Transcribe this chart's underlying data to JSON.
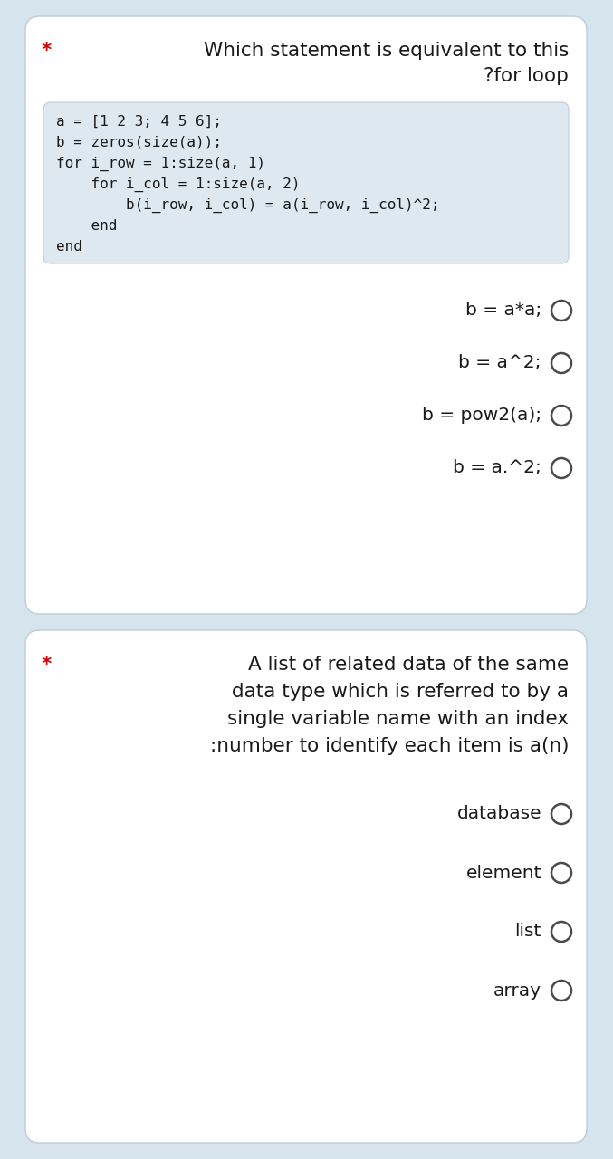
{
  "bg_color": "#d6e4ed",
  "card_color": "#ffffff",
  "text_color": "#1a1a1a",
  "star_color": "#cc0000",
  "code_bg_color": "#dde8f0",
  "q1_title_line1": "Which statement is equivalent to this",
  "q1_title_line2": "?for loop",
  "q1_code_lines": [
    "a = [1 2 3; 4 5 6];",
    "b = zeros(size(a));",
    "for i_row = 1:size(a, 1)",
    "    for i_col = 1:size(a, 2)",
    "        b(i_row, i_col) = a(i_row, i_col)^2;",
    "    end",
    "end"
  ],
  "q1_options": [
    "b = a*a;",
    "b = a^2;",
    "b = pow2(a);",
    "b = a.^2;"
  ],
  "q2_title_lines": [
    "A list of related data of the same",
    "data type which is referred to by a",
    "single variable name with an index",
    ":number to identify each item is a(n)"
  ],
  "q2_options": [
    "database",
    "element",
    "list",
    "array"
  ],
  "font_size_title": 15.5,
  "font_size_code": 11.5,
  "font_size_option": 14.5,
  "font_size_q2_title": 15.5
}
